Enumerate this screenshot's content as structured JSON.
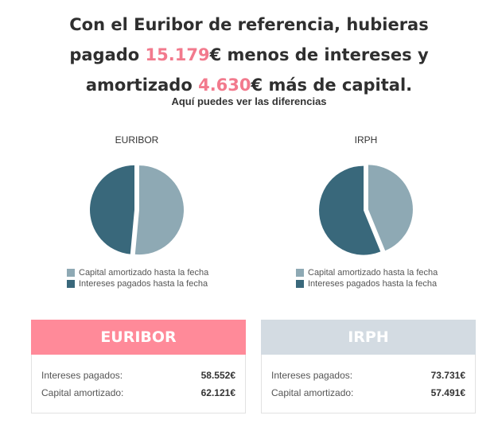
{
  "headline": {
    "line1": "Con el Euribor de referencia, hubieras",
    "line2_pre": "pagado ",
    "line2_amount": "15.179",
    "line2_post": "€ menos de intereses y",
    "line3_pre": "amortizado ",
    "line3_amount": "4.630",
    "line3_post": "€ más de capital."
  },
  "subtitle": "Aquí puedes ver las diferencias",
  "colors": {
    "capital": "#8ea9b4",
    "intereses": "#39687b",
    "highlight": "#f27a8d",
    "euribor_header": "#ff8a99",
    "irph_header": "#d3dbe2"
  },
  "chart_data": [
    {
      "type": "pie",
      "title": "EURIBOR",
      "labels": [
        "Capital amortizado hasta la fecha",
        "Intereses pagados hasta la fecha"
      ],
      "values": [
        62121,
        58552
      ],
      "legend_position": "bottom"
    },
    {
      "type": "pie",
      "title": "IRPH",
      "labels": [
        "Capital amortizado hasta la fecha",
        "Intereses pagados hasta la fecha"
      ],
      "values": [
        57491,
        73731
      ],
      "legend_position": "bottom"
    }
  ],
  "cards": {
    "euribor": {
      "title": "EURIBOR",
      "intereses_label": "Intereses pagados:",
      "intereses_value": "58.552€",
      "capital_label": "Capital amortizado:",
      "capital_value": "62.121€"
    },
    "irph": {
      "title": "IRPH",
      "intereses_label": "Intereses pagados:",
      "intereses_value": "73.731€",
      "capital_label": "Capital amortizado:",
      "capital_value": "57.491€"
    }
  }
}
